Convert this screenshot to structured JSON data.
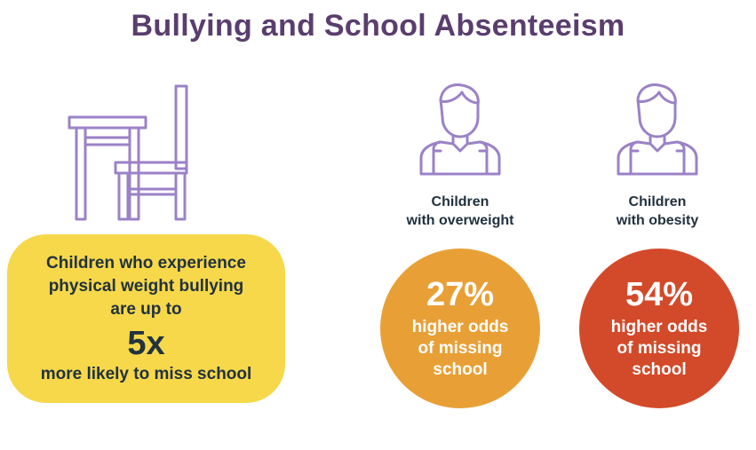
{
  "title": "Bullying and School Absenteeism",
  "colors": {
    "title": "#5a3e6e",
    "icon_stroke": "#9b82c7",
    "yellow_box": "#f6d84a",
    "dark_text": "#22323f",
    "overweight_circle": "#e8a036",
    "obesity_circle": "#d34a2a"
  },
  "bullying_panel": {
    "icon": "desk-chair-icon",
    "line1": "Children who experience",
    "line2": "physical weight bullying",
    "line3": "are up to",
    "multiplier": "5x",
    "line4": "more likely to miss school"
  },
  "groups": [
    {
      "icon": "student-icon",
      "caption_line1": "Children",
      "caption_line2": "with overweight",
      "percent": "27%",
      "text_line1": "higher odds",
      "text_line2": "of missing",
      "text_line3": "school"
    },
    {
      "icon": "student-icon",
      "caption_line1": "Children",
      "caption_line2": "with obesity",
      "percent": "54%",
      "text_line1": "higher odds",
      "text_line2": "of missing",
      "text_line3": "school"
    }
  ]
}
